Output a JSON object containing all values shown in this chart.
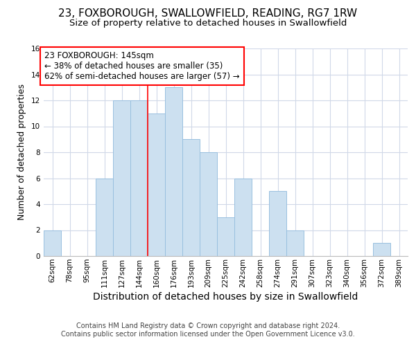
{
  "title": "23, FOXBOROUGH, SWALLOWFIELD, READING, RG7 1RW",
  "subtitle": "Size of property relative to detached houses in Swallowfield",
  "xlabel": "Distribution of detached houses by size in Swallowfield",
  "ylabel": "Number of detached properties",
  "footer_line1": "Contains HM Land Registry data © Crown copyright and database right 2024.",
  "footer_line2": "Contains public sector information licensed under the Open Government Licence v3.0.",
  "bar_labels": [
    "62sqm",
    "78sqm",
    "95sqm",
    "111sqm",
    "127sqm",
    "144sqm",
    "160sqm",
    "176sqm",
    "193sqm",
    "209sqm",
    "225sqm",
    "242sqm",
    "258sqm",
    "274sqm",
    "291sqm",
    "307sqm",
    "323sqm",
    "340sqm",
    "356sqm",
    "372sqm",
    "389sqm"
  ],
  "bar_values": [
    2,
    0,
    0,
    6,
    12,
    12,
    11,
    13,
    9,
    8,
    3,
    6,
    0,
    5,
    2,
    0,
    0,
    0,
    0,
    1,
    0
  ],
  "bar_color": "#cce0f0",
  "bar_edge_color": "#99c0df",
  "grid_color": "#d0d8e8",
  "ref_line_color": "red",
  "annotation_text_line1": "23 FOXBOROUGH: 145sqm",
  "annotation_text_line2": "← 38% of detached houses are smaller (35)",
  "annotation_text_line3": "62% of semi-detached houses are larger (57) →",
  "annotation_box_color": "white",
  "annotation_box_edge_color": "red",
  "ylim": [
    0,
    16
  ],
  "yticks": [
    0,
    2,
    4,
    6,
    8,
    10,
    12,
    14,
    16
  ],
  "title_fontsize": 11,
  "subtitle_fontsize": 9.5,
  "xlabel_fontsize": 10,
  "ylabel_fontsize": 9,
  "tick_fontsize": 7.5,
  "annotation_fontsize": 8.5,
  "footer_fontsize": 7
}
